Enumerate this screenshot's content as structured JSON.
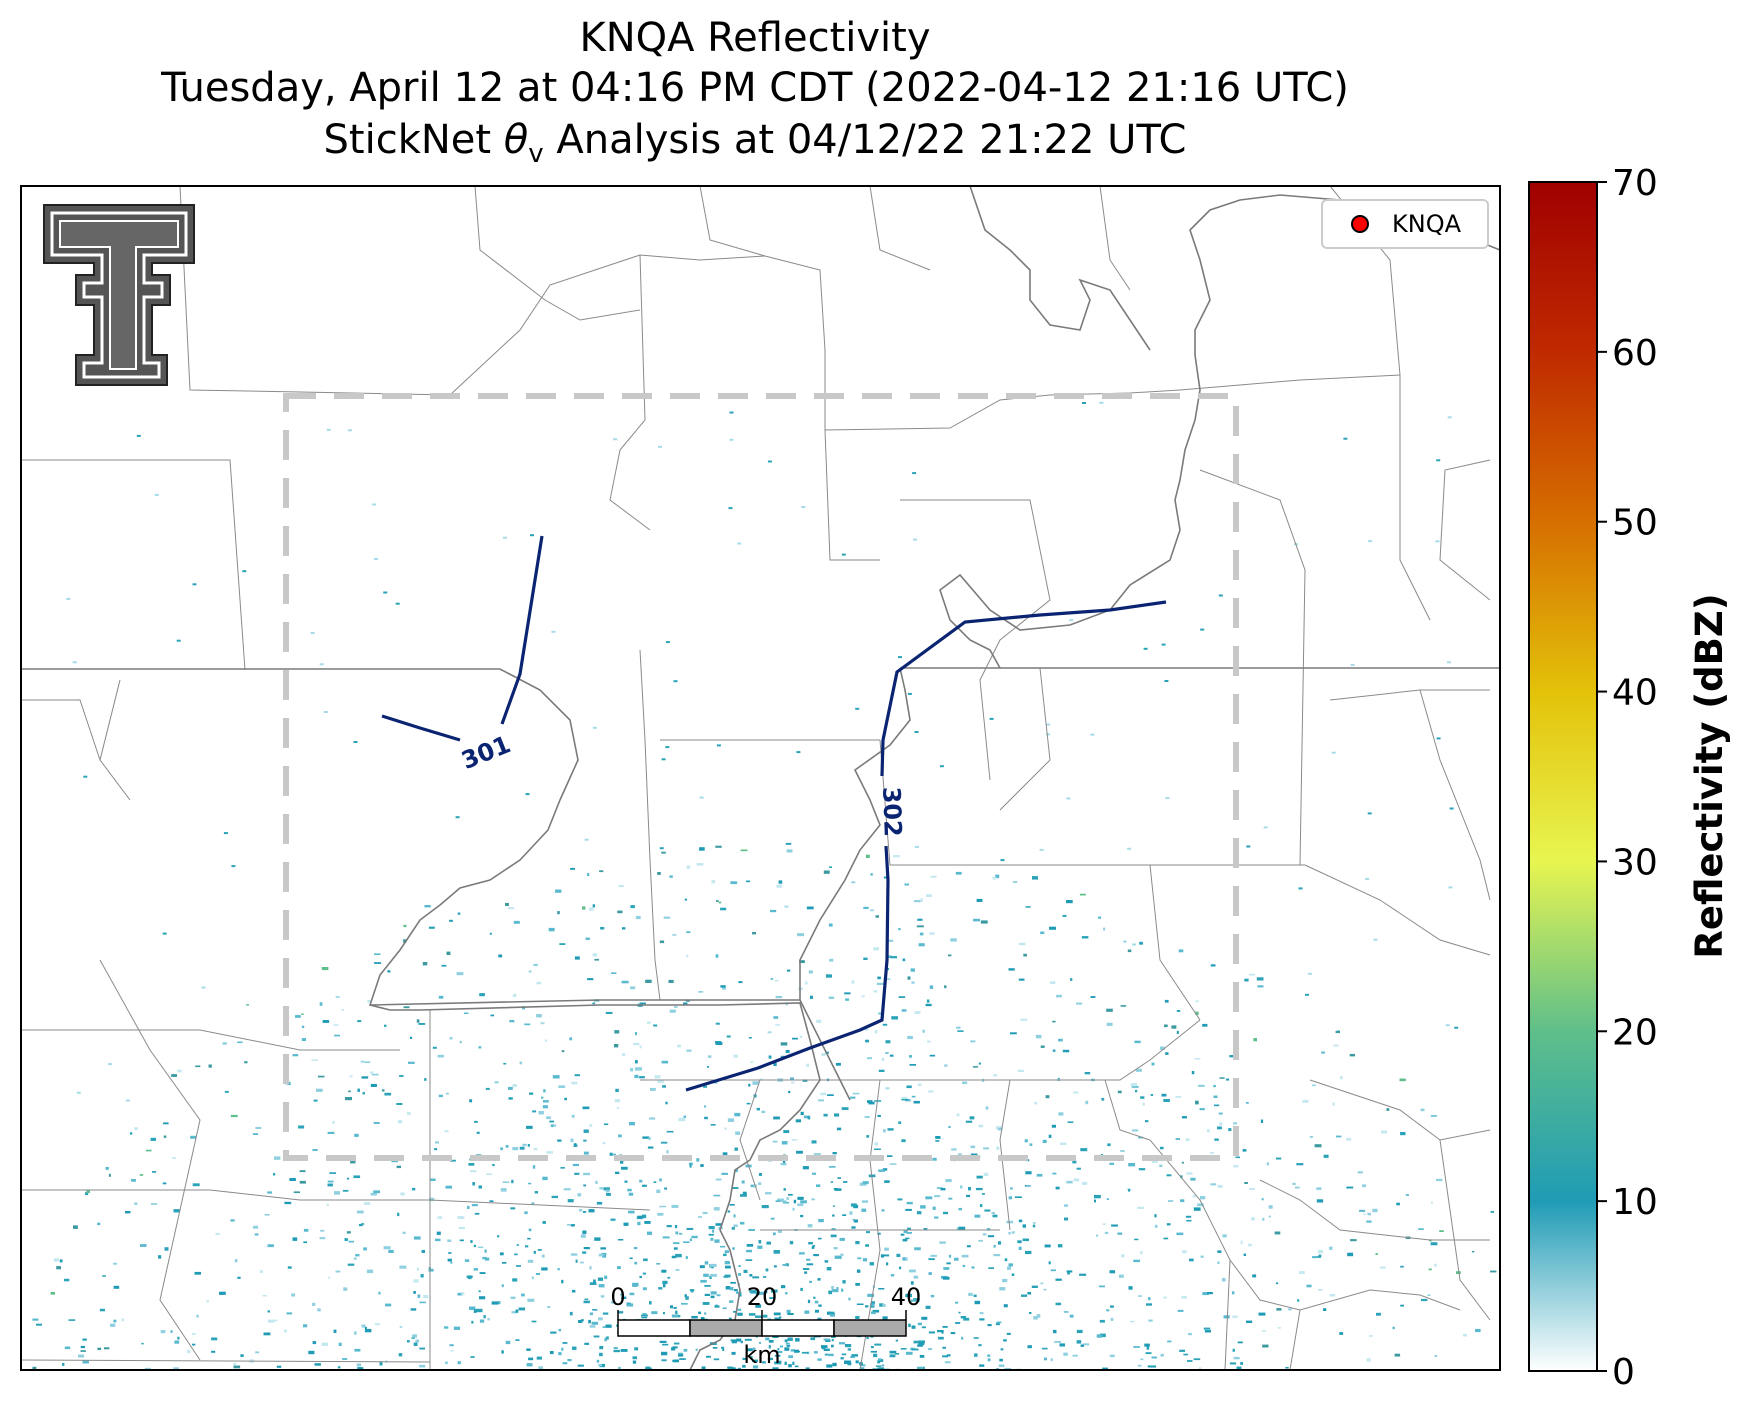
{
  "title": {
    "line1": "KNQA Reflectivity",
    "line2": "Tuesday, April 12 at 04:16 PM CDT (2022-04-12 21:16 UTC)",
    "line3_prefix": "StickNet ",
    "line3_symbol": "θ",
    "line3_sub": "v",
    "line3_suffix": " Analysis at 04/12/22 21:22 UTC"
  },
  "legend": {
    "marker_color": "#ff0000",
    "label": "KNQA"
  },
  "contours": [
    {
      "label": "301",
      "color": "#0a2472"
    },
    {
      "label": "302",
      "color": "#0a2472"
    }
  ],
  "scale_bar": {
    "ticks": [
      "0",
      "20",
      "40"
    ],
    "unit": "km"
  },
  "colorbar": {
    "label": "Reflectivity (dBZ)",
    "min": 0,
    "max": 70,
    "ticks": [
      "0",
      "10",
      "20",
      "30",
      "40",
      "50",
      "60",
      "70"
    ],
    "colors": [
      "#ffffff",
      "#1f9bb5",
      "#5fbf8a",
      "#e8f550",
      "#e3c20a",
      "#d66f00",
      "#c02a00",
      "#a00000"
    ]
  },
  "logo": {
    "name": "texas-tech-double-t-logo"
  },
  "analysis_box": {
    "style": "dashed",
    "color": "#c8c8c8"
  }
}
